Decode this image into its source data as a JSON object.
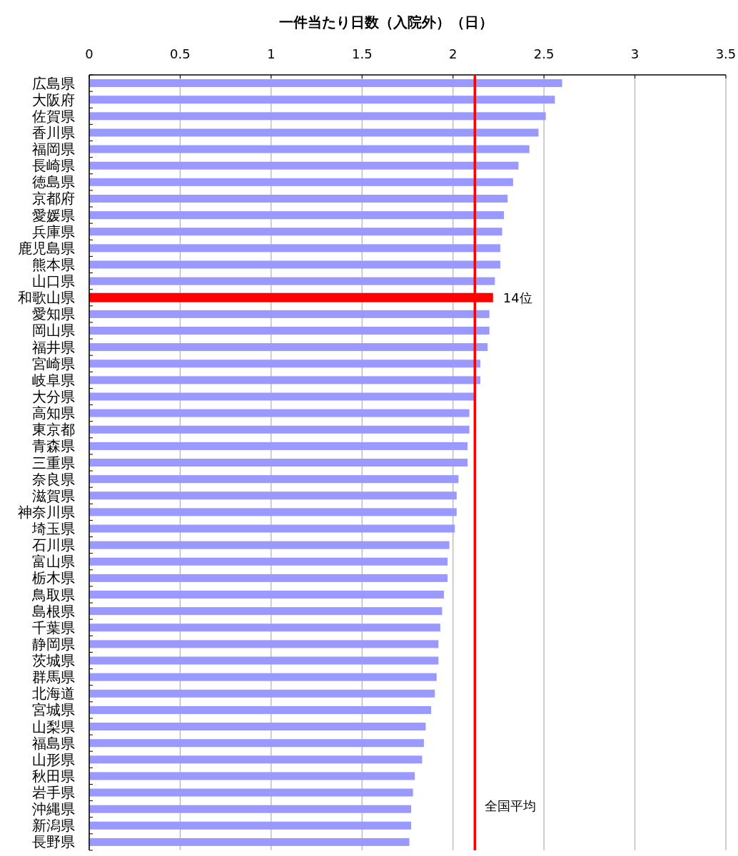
{
  "chart_data": {
    "type": "bar",
    "orientation": "horizontal",
    "title": "一件当たり日数（入院外）（日）",
    "categories": [
      "広島県",
      "大阪府",
      "佐賀県",
      "香川県",
      "福岡県",
      "長崎県",
      "徳島県",
      "京都府",
      "愛媛県",
      "兵庫県",
      "鹿児島県",
      "熊本県",
      "山口県",
      "和歌山県",
      "愛知県",
      "岡山県",
      "福井県",
      "宮崎県",
      "岐阜県",
      "大分県",
      "高知県",
      "東京都",
      "青森県",
      "三重県",
      "奈良県",
      "滋賀県",
      "神奈川県",
      "埼玉県",
      "石川県",
      "富山県",
      "栃木県",
      "鳥取県",
      "島根県",
      "千葉県",
      "静岡県",
      "茨城県",
      "群馬県",
      "北海道",
      "宮城県",
      "山梨県",
      "福島県",
      "山形県",
      "秋田県",
      "岩手県",
      "沖縄県",
      "新潟県",
      "長野県"
    ],
    "values": [
      2.6,
      2.56,
      2.51,
      2.47,
      2.42,
      2.36,
      2.33,
      2.3,
      2.28,
      2.27,
      2.26,
      2.26,
      2.23,
      2.22,
      2.2,
      2.2,
      2.19,
      2.15,
      2.15,
      2.12,
      2.09,
      2.09,
      2.08,
      2.08,
      2.03,
      2.02,
      2.02,
      2.01,
      1.98,
      1.97,
      1.97,
      1.95,
      1.94,
      1.93,
      1.92,
      1.92,
      1.91,
      1.9,
      1.88,
      1.85,
      1.84,
      1.83,
      1.79,
      1.78,
      1.77,
      1.77,
      1.76
    ],
    "colors": [
      "#9999ff",
      "#9999ff",
      "#9999ff",
      "#9999ff",
      "#9999ff",
      "#9999ff",
      "#9999ff",
      "#9999ff",
      "#9999ff",
      "#9999ff",
      "#9999ff",
      "#9999ff",
      "#9999ff",
      "#ff0000",
      "#9999ff",
      "#9999ff",
      "#9999ff",
      "#9999ff",
      "#9999ff",
      "#9999ff",
      "#9999ff",
      "#9999ff",
      "#9999ff",
      "#9999ff",
      "#9999ff",
      "#9999ff",
      "#9999ff",
      "#9999ff",
      "#9999ff",
      "#9999ff",
      "#9999ff",
      "#9999ff",
      "#9999ff",
      "#9999ff",
      "#9999ff",
      "#9999ff",
      "#9999ff",
      "#9999ff",
      "#9999ff",
      "#9999ff",
      "#9999ff",
      "#9999ff",
      "#9999ff",
      "#9999ff",
      "#9999ff",
      "#9999ff",
      "#9999ff"
    ],
    "xlim": [
      0,
      3.5
    ],
    "xticks": [
      0,
      0.5,
      1,
      1.5,
      2,
      2.5,
      3,
      3.5
    ],
    "grid": "x",
    "ref_lines": [
      {
        "axis": "x",
        "value": 2.12,
        "label": "全国平均",
        "color": "#ff0000"
      }
    ],
    "annotations": [
      {
        "text": "14位",
        "x": 2.22,
        "y": "和歌山県"
      }
    ]
  }
}
